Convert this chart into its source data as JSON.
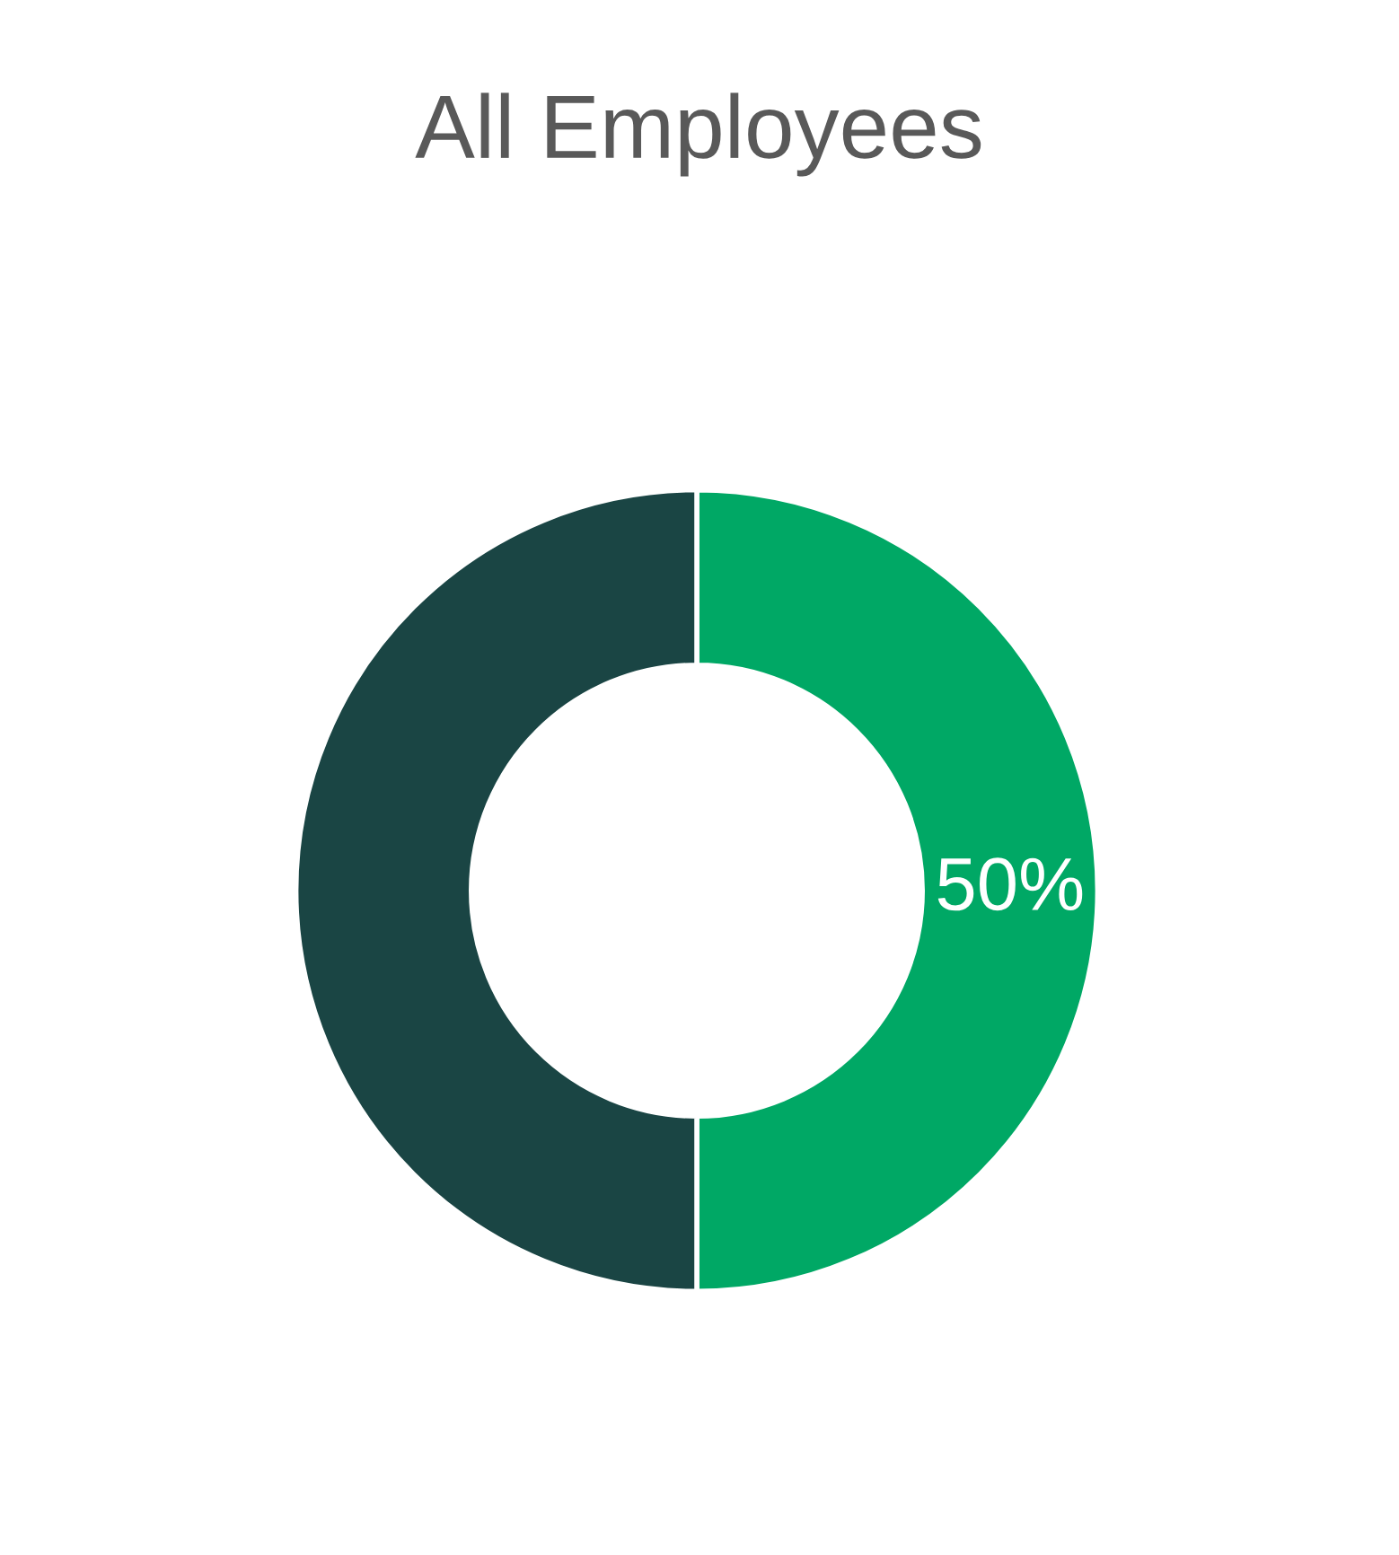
{
  "chart_data": {
    "type": "donut",
    "title": "All Employees",
    "categories": [
      null,
      null
    ],
    "values": [
      50,
      50
    ],
    "colors": [
      "#00a865",
      "#1a4544"
    ],
    "value_labels": [
      "50%",
      null
    ],
    "legend": false
  }
}
